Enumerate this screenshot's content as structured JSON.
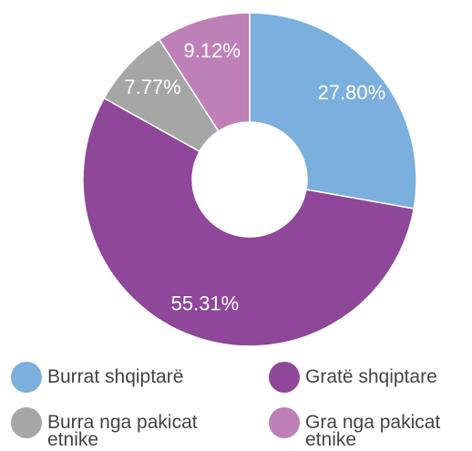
{
  "chart_data": {
    "type": "donut",
    "categories": [
      "Burrat shqiptarë",
      "Gratë shqiptare",
      "Burra nga pakicat etnike",
      "Gra nga pakicat etnike"
    ],
    "values": [
      27.8,
      55.31,
      7.77,
      9.12
    ],
    "value_labels": [
      "27.80%",
      "55.31%",
      "7.77%",
      "9.12%"
    ],
    "colors": [
      "#7aafde",
      "#8e4799",
      "#a6a6a6",
      "#bf80b8"
    ]
  }
}
